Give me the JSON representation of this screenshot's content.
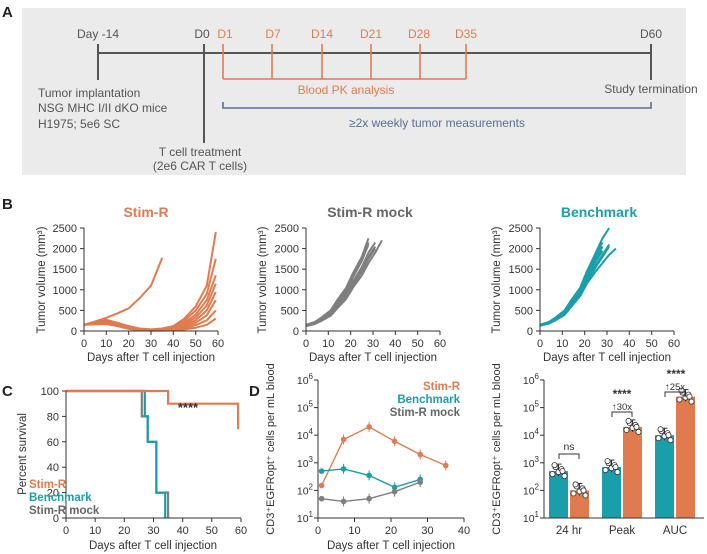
{
  "colors": {
    "stim_r": "#E07B4F",
    "mock": "#7F7F7F",
    "benchmark": "#1A9EAA",
    "pk_text": "#E07B4F",
    "tumor_text": "#5A6E94",
    "dark": "#555555",
    "panel_bg": "#EBEBEB"
  },
  "panel_labels": {
    "a": "A",
    "b": "B",
    "c": "C",
    "d": "D"
  },
  "timeline": {
    "day_minus14": "Day -14",
    "d0": "D0",
    "pk_days": [
      "D1",
      "D7",
      "D14",
      "D21",
      "D28",
      "D35"
    ],
    "d60": "D60",
    "implant_lines": [
      "Tumor implantation",
      "NSG MHC I/II dKO mice",
      "H1975; 5e6 SC"
    ],
    "pk_label": "Blood PK analysis",
    "termination": "Study termination",
    "tumor_meas": "≥2x weekly tumor measurements",
    "tcell_lines": [
      "T cell treatment",
      "(2e6 CAR T cells)"
    ]
  },
  "chart_data": [
    {
      "id": "B1",
      "type": "line",
      "title": "Stim-R",
      "xlabel": "Days after T cell injection",
      "ylabel": "Tumor volume (mm³)",
      "xlim": [
        0,
        60
      ],
      "ylim": [
        0,
        2500
      ],
      "xticks": [
        "0",
        "10",
        "20",
        "30",
        "40",
        "50",
        "60"
      ],
      "yticks": [
        "0",
        "500",
        "1000",
        "1500",
        "2000",
        "2500"
      ],
      "series": [
        {
          "x": [
            0,
            5,
            10,
            15,
            20,
            25,
            30,
            35
          ],
          "y": [
            150,
            230,
            320,
            430,
            550,
            800,
            1100,
            1780
          ]
        },
        {
          "x": [
            0,
            5,
            10,
            15,
            20,
            25,
            30,
            35,
            40,
            45,
            50,
            55,
            59
          ],
          "y": [
            150,
            220,
            270,
            200,
            120,
            60,
            40,
            60,
            120,
            300,
            600,
            1100,
            2400
          ]
        },
        {
          "x": [
            0,
            5,
            10,
            15,
            20,
            25,
            30,
            35,
            40,
            45,
            50,
            55,
            59
          ],
          "y": [
            150,
            200,
            240,
            160,
            90,
            40,
            30,
            50,
            100,
            250,
            500,
            900,
            1750
          ]
        },
        {
          "x": [
            0,
            5,
            10,
            15,
            20,
            25,
            30,
            35,
            40,
            45,
            50,
            55,
            59
          ],
          "y": [
            150,
            210,
            250,
            180,
            100,
            50,
            30,
            40,
            80,
            200,
            400,
            750,
            1350
          ]
        },
        {
          "x": [
            0,
            5,
            10,
            15,
            20,
            25,
            30,
            35,
            40,
            45,
            50,
            55,
            59
          ],
          "y": [
            150,
            190,
            220,
            150,
            80,
            40,
            20,
            30,
            60,
            160,
            330,
            620,
            1150
          ]
        },
        {
          "x": [
            0,
            5,
            10,
            15,
            20,
            25,
            30,
            35,
            40,
            45,
            50,
            55,
            59
          ],
          "y": [
            150,
            200,
            230,
            160,
            90,
            40,
            20,
            30,
            50,
            130,
            260,
            500,
            950
          ]
        },
        {
          "x": [
            0,
            5,
            10,
            15,
            20,
            25,
            30,
            35,
            40,
            45,
            50,
            55,
            59
          ],
          "y": [
            150,
            180,
            200,
            140,
            70,
            30,
            20,
            20,
            40,
            100,
            200,
            380,
            750
          ]
        },
        {
          "x": [
            0,
            5,
            10,
            15,
            20,
            25,
            30,
            35,
            40,
            45,
            50,
            55,
            59
          ],
          "y": [
            150,
            170,
            190,
            130,
            60,
            30,
            10,
            20,
            30,
            70,
            140,
            260,
            500
          ]
        },
        {
          "x": [
            0,
            5,
            10,
            15,
            20,
            25,
            30,
            35,
            40,
            45,
            50,
            55,
            59
          ],
          "y": [
            150,
            160,
            170,
            120,
            50,
            20,
            10,
            10,
            20,
            40,
            80,
            150,
            300
          ]
        }
      ]
    },
    {
      "id": "B2",
      "type": "line",
      "title": "Stim-R mock",
      "xlabel": "Days after T cell injection",
      "ylabel": "Tumor volume (mm³)",
      "xlim": [
        0,
        60
      ],
      "ylim": [
        0,
        2500
      ],
      "xticks": [
        "0",
        "10",
        "20",
        "30",
        "40",
        "50",
        "60"
      ],
      "yticks": [
        "0",
        "500",
        "1000",
        "1500",
        "2000",
        "2500"
      ],
      "series": [
        {
          "x": [
            0,
            4,
            7,
            11,
            14,
            18,
            21,
            25,
            28
          ],
          "y": [
            150,
            220,
            330,
            500,
            750,
            1050,
            1400,
            1800,
            2250
          ]
        },
        {
          "x": [
            0,
            4,
            7,
            11,
            14,
            18,
            21,
            25,
            28
          ],
          "y": [
            140,
            210,
            310,
            470,
            720,
            1000,
            1350,
            1750,
            2150
          ]
        },
        {
          "x": [
            0,
            4,
            7,
            11,
            14,
            18,
            21,
            25,
            28
          ],
          "y": [
            150,
            200,
            300,
            450,
            680,
            950,
            1300,
            1700,
            2100
          ]
        },
        {
          "x": [
            0,
            4,
            7,
            11,
            14,
            18,
            21,
            25,
            28,
            31
          ],
          "y": [
            130,
            190,
            280,
            420,
            640,
            900,
            1200,
            1550,
            1900,
            2150
          ]
        },
        {
          "x": [
            0,
            4,
            7,
            11,
            14,
            18,
            21,
            25,
            28,
            31
          ],
          "y": [
            140,
            190,
            270,
            400,
            600,
            850,
            1150,
            1500,
            1800,
            2050
          ]
        },
        {
          "x": [
            0,
            4,
            7,
            11,
            14,
            18,
            21,
            25,
            28,
            31,
            34
          ],
          "y": [
            120,
            170,
            250,
            370,
            550,
            780,
            1050,
            1350,
            1650,
            1900,
            2200
          ]
        },
        {
          "x": [
            0,
            4,
            7,
            11,
            14,
            18,
            21,
            25,
            28,
            31
          ],
          "y": [
            130,
            180,
            260,
            380,
            560,
            800,
            1100,
            1450,
            1750,
            2000
          ]
        }
      ]
    },
    {
      "id": "B3",
      "type": "line",
      "title": "Benchmark",
      "xlabel": "Days after T cell injection",
      "ylabel": "Tumor volume (mm³)",
      "xlim": [
        0,
        60
      ],
      "ylim": [
        0,
        2500
      ],
      "xticks": [
        "0",
        "10",
        "20",
        "30",
        "40",
        "50",
        "60"
      ],
      "yticks": [
        "0",
        "500",
        "1000",
        "1500",
        "2000",
        "2500"
      ],
      "series": [
        {
          "x": [
            0,
            4,
            7,
            11,
            14,
            18,
            21,
            25,
            28,
            31
          ],
          "y": [
            150,
            220,
            330,
            500,
            750,
            1050,
            1450,
            1900,
            2250,
            2500
          ]
        },
        {
          "x": [
            0,
            4,
            7,
            11,
            14,
            18,
            21,
            25,
            28
          ],
          "y": [
            150,
            210,
            320,
            480,
            720,
            1000,
            1400,
            1850,
            2150
          ]
        },
        {
          "x": [
            0,
            4,
            7,
            11,
            14,
            18,
            21,
            25,
            28
          ],
          "y": [
            140,
            200,
            300,
            460,
            700,
            980,
            1350,
            1750,
            2050
          ]
        },
        {
          "x": [
            0,
            4,
            7,
            11,
            14,
            18,
            21,
            25,
            28
          ],
          "y": [
            140,
            200,
            290,
            440,
            660,
            940,
            1300,
            1700,
            1950
          ]
        },
        {
          "x": [
            0,
            4,
            7,
            11,
            14,
            18,
            21,
            25,
            28,
            31
          ],
          "y": [
            130,
            190,
            280,
            420,
            640,
            900,
            1250,
            1600,
            1850,
            2100
          ]
        },
        {
          "x": [
            0,
            4,
            7,
            11,
            14,
            18,
            21,
            25,
            28,
            31,
            34
          ],
          "y": [
            130,
            180,
            260,
            390,
            590,
            850,
            1150,
            1450,
            1650,
            1850,
            2000
          ]
        },
        {
          "x": [
            0,
            4,
            7,
            11,
            14,
            18,
            21,
            25,
            28,
            31
          ],
          "y": [
            140,
            190,
            270,
            400,
            600,
            870,
            1200,
            1550,
            1800,
            2050
          ]
        }
      ]
    },
    {
      "id": "C",
      "type": "line",
      "xlabel": "Days after T cell injection",
      "ylabel": "Percent survival",
      "xlim": [
        0,
        60
      ],
      "ylim": [
        0,
        100
      ],
      "xticks": [
        "0",
        "10",
        "20",
        "30",
        "40",
        "50",
        "60"
      ],
      "yticks": [
        "0",
        "20",
        "40",
        "60",
        "80",
        "100"
      ],
      "significance": "****",
      "series": [
        {
          "name": "Stim-R",
          "x": [
            0,
            35,
            35,
            59,
            59
          ],
          "y": [
            100,
            100,
            90,
            90,
            70
          ]
        },
        {
          "name": "Benchmark",
          "x": [
            0,
            27,
            27,
            28,
            28,
            31,
            31,
            34,
            34
          ],
          "y": [
            100,
            100,
            80,
            80,
            60,
            60,
            20,
            20,
            0
          ]
        },
        {
          "name": "Stim-R mock",
          "x": [
            0,
            26,
            26,
            28,
            28,
            31,
            31,
            35,
            35
          ],
          "y": [
            100,
            100,
            80,
            80,
            60,
            60,
            20,
            20,
            0
          ]
        }
      ]
    },
    {
      "id": "D1",
      "type": "line",
      "xlabel": "Days after T cell injection",
      "ylabel": "CD3⁺EGFRopt⁺ cells per mL blood",
      "xlim": [
        0,
        40
      ],
      "ylim_log10": [
        1,
        6
      ],
      "xticks": [
        "0",
        "10",
        "20",
        "30",
        "40"
      ],
      "ytick_exponents": [
        "1",
        "2",
        "3",
        "4",
        "5",
        "6"
      ],
      "series": [
        {
          "name": "Stim-R",
          "x": [
            1,
            7,
            14,
            21,
            28,
            35
          ],
          "y": [
            150,
            7000,
            20000,
            6000,
            2000,
            800
          ]
        },
        {
          "name": "Benchmark",
          "x": [
            1,
            7,
            14,
            21,
            28
          ],
          "y": [
            500,
            600,
            350,
            130,
            250
          ]
        },
        {
          "name": "Stim-R mock",
          "x": [
            1,
            7,
            14,
            21,
            28
          ],
          "y": [
            50,
            40,
            50,
            90,
            200
          ]
        }
      ]
    },
    {
      "id": "D2",
      "type": "bar",
      "ylabel": "CD3⁺EGFRopt⁺ cells per mL blood",
      "ylim_log10": [
        1,
        6
      ],
      "ytick_exponents": [
        "1",
        "2",
        "3",
        "4",
        "5",
        "6"
      ],
      "categories": [
        "24 hr",
        "Peak",
        "AUC"
      ],
      "series": [
        {
          "name": "Benchmark",
          "values": [
            500,
            700,
            10000
          ]
        },
        {
          "name": "Stim-R",
          "values": [
            100,
            20000,
            250000
          ]
        }
      ],
      "annotations": [
        {
          "category": "24 hr",
          "text": "ns"
        },
        {
          "category": "Peak",
          "text": "****",
          "fold": "↑30x"
        },
        {
          "category": "AUC",
          "text": "****",
          "fold": "↑25x"
        }
      ]
    }
  ]
}
